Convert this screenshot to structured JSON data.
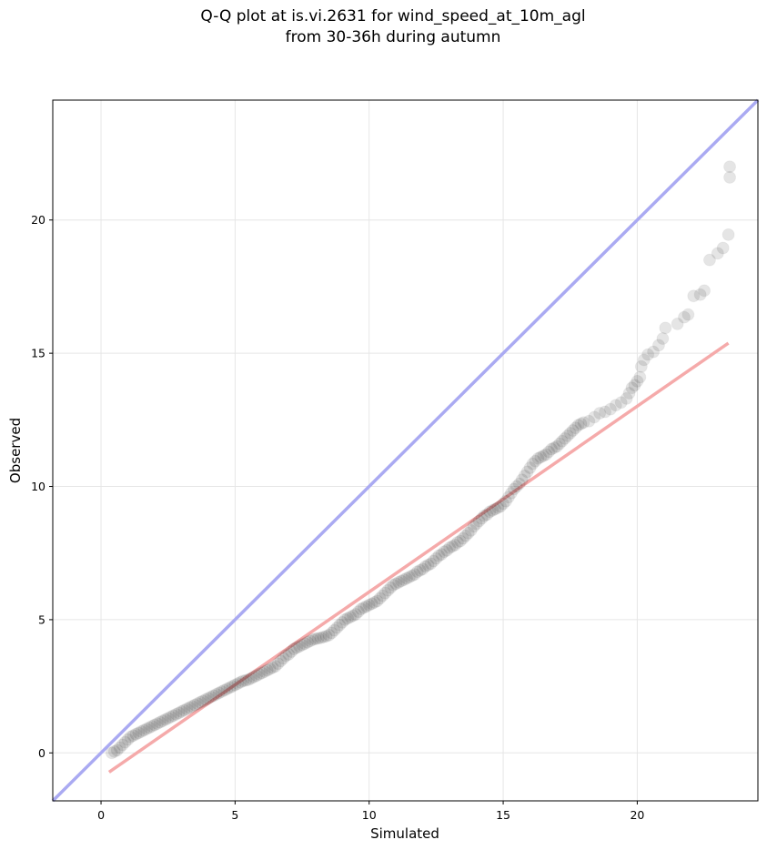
{
  "chart_data": {
    "type": "scatter",
    "title_line1": "Q-Q plot at is.vi.2631 for wind_speed_at_10m_agl",
    "title_line2": "from 30-36h during autumn",
    "xlabel": "Simulated",
    "ylabel": "Observed",
    "xlim": [
      -1.8,
      24.5
    ],
    "ylim": [
      -1.8,
      24.5
    ],
    "xticks": [
      0,
      5,
      10,
      15,
      20
    ],
    "yticks": [
      0,
      5,
      10,
      15,
      20
    ],
    "grid": true,
    "colors": {
      "identity_line": "#aaaaf2",
      "fit_line": "#f5aaaa",
      "points": "#000000"
    },
    "identity_line": [
      [
        -1.8,
        -1.8
      ],
      [
        24.5,
        24.5
      ]
    ],
    "fit_line": [
      [
        0.3,
        -0.72
      ],
      [
        23.4,
        15.38
      ]
    ],
    "points": [
      [
        0.4,
        0.0
      ],
      [
        0.5,
        0.05
      ],
      [
        0.6,
        0.1
      ],
      [
        0.7,
        0.2
      ],
      [
        0.8,
        0.3
      ],
      [
        0.9,
        0.4
      ],
      [
        1.0,
        0.5
      ],
      [
        1.1,
        0.6
      ],
      [
        1.2,
        0.65
      ],
      [
        1.3,
        0.7
      ],
      [
        1.4,
        0.75
      ],
      [
        1.5,
        0.8
      ],
      [
        1.6,
        0.85
      ],
      [
        1.7,
        0.9
      ],
      [
        1.8,
        0.95
      ],
      [
        1.9,
        1.0
      ],
      [
        2.0,
        1.05
      ],
      [
        2.1,
        1.1
      ],
      [
        2.2,
        1.15
      ],
      [
        2.3,
        1.2
      ],
      [
        2.4,
        1.25
      ],
      [
        2.5,
        1.3
      ],
      [
        2.6,
        1.35
      ],
      [
        2.7,
        1.4
      ],
      [
        2.8,
        1.45
      ],
      [
        2.9,
        1.5
      ],
      [
        3.0,
        1.55
      ],
      [
        3.1,
        1.6
      ],
      [
        3.2,
        1.65
      ],
      [
        3.3,
        1.7
      ],
      [
        3.4,
        1.75
      ],
      [
        3.5,
        1.8
      ],
      [
        3.6,
        1.85
      ],
      [
        3.7,
        1.9
      ],
      [
        3.8,
        1.95
      ],
      [
        3.9,
        2.0
      ],
      [
        4.0,
        2.05
      ],
      [
        4.1,
        2.1
      ],
      [
        4.2,
        2.15
      ],
      [
        4.3,
        2.2
      ],
      [
        4.4,
        2.25
      ],
      [
        4.5,
        2.3
      ],
      [
        4.6,
        2.35
      ],
      [
        4.7,
        2.4
      ],
      [
        4.8,
        2.45
      ],
      [
        4.9,
        2.5
      ],
      [
        5.0,
        2.55
      ],
      [
        5.1,
        2.6
      ],
      [
        5.2,
        2.65
      ],
      [
        5.3,
        2.7
      ],
      [
        5.4,
        2.72
      ],
      [
        5.5,
        2.75
      ],
      [
        5.6,
        2.8
      ],
      [
        5.7,
        2.85
      ],
      [
        5.8,
        2.9
      ],
      [
        5.9,
        2.95
      ],
      [
        6.0,
        3.0
      ],
      [
        6.1,
        3.05
      ],
      [
        6.2,
        3.1
      ],
      [
        6.3,
        3.15
      ],
      [
        6.4,
        3.2
      ],
      [
        6.5,
        3.25
      ],
      [
        6.6,
        3.35
      ],
      [
        6.7,
        3.45
      ],
      [
        6.8,
        3.55
      ],
      [
        6.9,
        3.65
      ],
      [
        7.0,
        3.7
      ],
      [
        7.1,
        3.8
      ],
      [
        7.2,
        3.9
      ],
      [
        7.3,
        3.95
      ],
      [
        7.4,
        4.0
      ],
      [
        7.5,
        4.05
      ],
      [
        7.6,
        4.1
      ],
      [
        7.7,
        4.15
      ],
      [
        7.8,
        4.2
      ],
      [
        7.9,
        4.25
      ],
      [
        8.0,
        4.28
      ],
      [
        8.1,
        4.3
      ],
      [
        8.2,
        4.32
      ],
      [
        8.3,
        4.35
      ],
      [
        8.4,
        4.38
      ],
      [
        8.5,
        4.42
      ],
      [
        8.6,
        4.5
      ],
      [
        8.7,
        4.6
      ],
      [
        8.8,
        4.7
      ],
      [
        8.9,
        4.8
      ],
      [
        9.0,
        4.9
      ],
      [
        9.1,
        5.0
      ],
      [
        9.2,
        5.05
      ],
      [
        9.3,
        5.1
      ],
      [
        9.4,
        5.15
      ],
      [
        9.5,
        5.2
      ],
      [
        9.6,
        5.3
      ],
      [
        9.7,
        5.4
      ],
      [
        9.8,
        5.45
      ],
      [
        9.9,
        5.5
      ],
      [
        10.0,
        5.55
      ],
      [
        10.1,
        5.6
      ],
      [
        10.2,
        5.65
      ],
      [
        10.3,
        5.7
      ],
      [
        10.4,
        5.8
      ],
      [
        10.5,
        5.9
      ],
      [
        10.6,
        6.0
      ],
      [
        10.7,
        6.1
      ],
      [
        10.8,
        6.2
      ],
      [
        10.9,
        6.3
      ],
      [
        11.0,
        6.35
      ],
      [
        11.1,
        6.4
      ],
      [
        11.2,
        6.45
      ],
      [
        11.3,
        6.5
      ],
      [
        11.4,
        6.55
      ],
      [
        11.5,
        6.6
      ],
      [
        11.6,
        6.65
      ],
      [
        11.7,
        6.7
      ],
      [
        11.8,
        6.8
      ],
      [
        11.9,
        6.85
      ],
      [
        12.0,
        6.9
      ],
      [
        12.1,
        7.0
      ],
      [
        12.2,
        7.05
      ],
      [
        12.3,
        7.1
      ],
      [
        12.4,
        7.2
      ],
      [
        12.5,
        7.3
      ],
      [
        12.6,
        7.4
      ],
      [
        12.7,
        7.45
      ],
      [
        12.8,
        7.55
      ],
      [
        12.9,
        7.6
      ],
      [
        13.0,
        7.7
      ],
      [
        13.1,
        7.75
      ],
      [
        13.2,
        7.8
      ],
      [
        13.3,
        7.9
      ],
      [
        13.4,
        7.95
      ],
      [
        13.5,
        8.05
      ],
      [
        13.6,
        8.15
      ],
      [
        13.7,
        8.25
      ],
      [
        13.8,
        8.35
      ],
      [
        13.9,
        8.5
      ],
      [
        14.0,
        8.6
      ],
      [
        14.1,
        8.7
      ],
      [
        14.2,
        8.8
      ],
      [
        14.3,
        8.9
      ],
      [
        14.4,
        8.95
      ],
      [
        14.5,
        9.05
      ],
      [
        14.6,
        9.1
      ],
      [
        14.7,
        9.15
      ],
      [
        14.8,
        9.2
      ],
      [
        14.9,
        9.25
      ],
      [
        15.0,
        9.35
      ],
      [
        15.1,
        9.45
      ],
      [
        15.2,
        9.6
      ],
      [
        15.3,
        9.75
      ],
      [
        15.4,
        9.9
      ],
      [
        15.5,
        10.0
      ],
      [
        15.6,
        10.1
      ],
      [
        15.7,
        10.25
      ],
      [
        15.8,
        10.4
      ],
      [
        15.9,
        10.55
      ],
      [
        16.0,
        10.7
      ],
      [
        16.1,
        10.85
      ],
      [
        16.2,
        10.95
      ],
      [
        16.3,
        11.05
      ],
      [
        16.4,
        11.1
      ],
      [
        16.5,
        11.15
      ],
      [
        16.6,
        11.2
      ],
      [
        16.7,
        11.3
      ],
      [
        16.8,
        11.4
      ],
      [
        16.9,
        11.45
      ],
      [
        17.0,
        11.5
      ],
      [
        17.1,
        11.6
      ],
      [
        17.2,
        11.7
      ],
      [
        17.3,
        11.8
      ],
      [
        17.4,
        11.9
      ],
      [
        17.5,
        12.0
      ],
      [
        17.6,
        12.1
      ],
      [
        17.7,
        12.2
      ],
      [
        17.8,
        12.3
      ],
      [
        17.9,
        12.35
      ],
      [
        18.0,
        12.4
      ],
      [
        18.2,
        12.45
      ],
      [
        18.4,
        12.6
      ],
      [
        18.6,
        12.75
      ],
      [
        18.8,
        12.8
      ],
      [
        19.0,
        12.9
      ],
      [
        19.2,
        13.05
      ],
      [
        19.4,
        13.15
      ],
      [
        19.6,
        13.3
      ],
      [
        19.7,
        13.5
      ],
      [
        19.8,
        13.7
      ],
      [
        19.9,
        13.8
      ],
      [
        20.0,
        13.95
      ],
      [
        20.1,
        14.1
      ],
      [
        20.15,
        14.5
      ],
      [
        20.25,
        14.75
      ],
      [
        20.4,
        14.95
      ],
      [
        20.6,
        15.05
      ],
      [
        20.8,
        15.3
      ],
      [
        20.95,
        15.55
      ],
      [
        21.05,
        15.95
      ],
      [
        21.5,
        16.1
      ],
      [
        21.75,
        16.35
      ],
      [
        21.9,
        16.45
      ],
      [
        22.1,
        17.15
      ],
      [
        22.35,
        17.2
      ],
      [
        22.5,
        17.35
      ],
      [
        22.7,
        18.5
      ],
      [
        23.0,
        18.75
      ],
      [
        23.2,
        18.95
      ],
      [
        23.4,
        19.45
      ],
      [
        23.45,
        21.6
      ],
      [
        23.45,
        22.0
      ]
    ]
  }
}
